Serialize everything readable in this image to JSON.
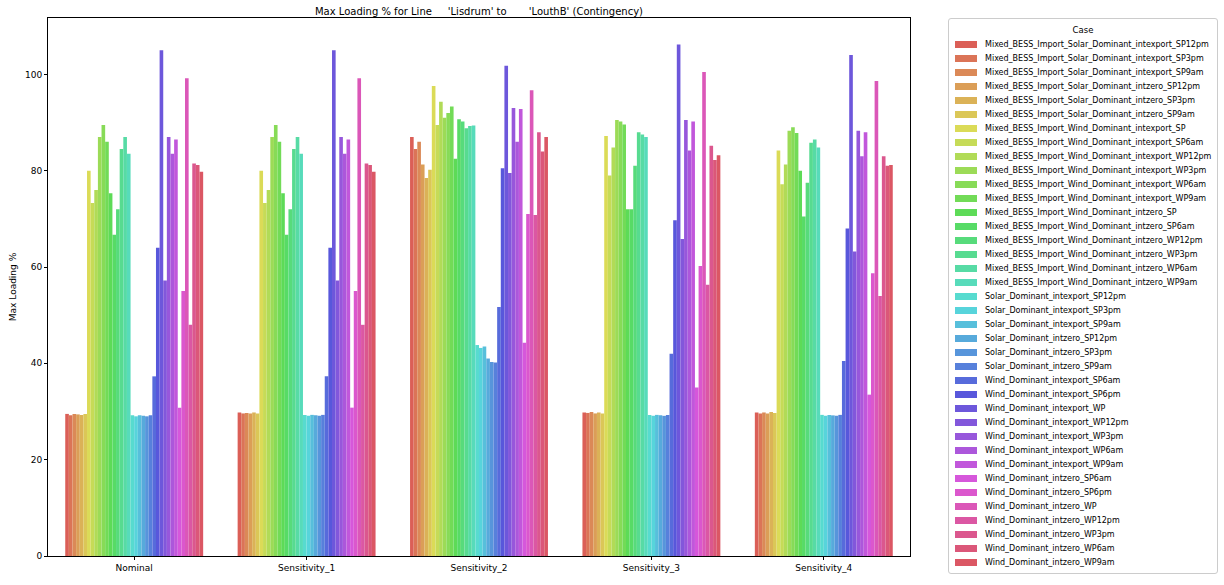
{
  "chart_data": {
    "type": "bar",
    "title": "Max Loading % for Line     'Lisdrum' to       'LouthB' (Contingency)",
    "y_label": "Max Loading %",
    "categories": [
      "Nominal",
      "Sensitivity_1",
      "Sensitivity_2",
      "Sensitivity_3",
      "Sensitivity_4"
    ],
    "ylim": [
      0,
      111.7
    ],
    "yticks": [
      0,
      20,
      40,
      60,
      80,
      100
    ],
    "grid": false,
    "legend": "upper right",
    "legend_title": "Case",
    "series": [
      {
        "name": "Mixed_BESS_Import_Solar_Dominant_intexport_SP12pm",
        "color": "#db5f57",
        "values": [
          29.5,
          29.8,
          87,
          29.8,
          29.8
        ]
      },
      {
        "name": "Mixed_BESS_Import_Solar_Dominant_intexport_SP3pm",
        "color": "#db7457",
        "values": [
          29.2,
          29.6,
          84.5,
          29.7,
          29.6
        ]
      },
      {
        "name": "Mixed_BESS_Import_Solar_Dominant_intexport_SP9am",
        "color": "#db8957",
        "values": [
          29.5,
          29.7,
          86,
          29.9,
          29.8
        ]
      },
      {
        "name": "Mixed_BESS_Import_Solar_Dominant_intzero_SP12pm",
        "color": "#db9e57",
        "values": [
          29.4,
          29.6,
          81.3,
          29.6,
          29.6
        ]
      },
      {
        "name": "Mixed_BESS_Import_Solar_Dominant_intzero_SP3pm",
        "color": "#dbb257",
        "values": [
          29.3,
          29.8,
          78.5,
          29.8,
          29.9
        ]
      },
      {
        "name": "Mixed_BESS_Import_Solar_Dominant_intzero_SP9am",
        "color": "#dbc757",
        "values": [
          29.5,
          29.6,
          80.2,
          29.6,
          29.7
        ]
      },
      {
        "name": "Mixed_BESS_Import_Wind_Dominant_intexport_SP",
        "color": "#dbdb57",
        "values": [
          80,
          80,
          97.6,
          87.2,
          84.2
        ]
      },
      {
        "name": "Mixed_BESS_Import_Wind_Dominant_intexport_SP6am",
        "color": "#c6db57",
        "values": [
          73.3,
          73.3,
          89.5,
          79,
          77.2
        ]
      },
      {
        "name": "Mixed_BESS_Import_Wind_Dominant_intexport_WP12pm",
        "color": "#b1db57",
        "values": [
          76,
          76,
          94.3,
          84.8,
          81.3
        ]
      },
      {
        "name": "Mixed_BESS_Import_Wind_Dominant_intexport_WP3pm",
        "color": "#9cdb57",
        "values": [
          87,
          87,
          91,
          90.5,
          88.3
        ]
      },
      {
        "name": "Mixed_BESS_Import_Wind_Dominant_intexport_WP6am",
        "color": "#87db57",
        "values": [
          89.5,
          89.5,
          92,
          90.2,
          89
        ]
      },
      {
        "name": "Mixed_BESS_Import_Wind_Dominant_intexport_WP9am",
        "color": "#72db57",
        "values": [
          86,
          86,
          93.3,
          89.6,
          87.8
        ]
      },
      {
        "name": "Mixed_BESS_Import_Wind_Dominant_intzero_SP",
        "color": "#5ddb57",
        "values": [
          75.3,
          75.3,
          82.5,
          72,
          80
        ]
      },
      {
        "name": "Mixed_BESS_Import_Wind_Dominant_intzero_SP6am",
        "color": "#57db66",
        "values": [
          66.7,
          66.7,
          90.7,
          72,
          70.5
        ]
      },
      {
        "name": "Mixed_BESS_Import_Wind_Dominant_intzero_WP12pm",
        "color": "#57db7b",
        "values": [
          72,
          72,
          90.2,
          81,
          77.5
        ]
      },
      {
        "name": "Mixed_BESS_Import_Wind_Dominant_intzero_WP3pm",
        "color": "#57db90",
        "values": [
          84.5,
          84.5,
          88.8,
          88,
          85.8
        ]
      },
      {
        "name": "Mixed_BESS_Import_Wind_Dominant_intzero_WP6am",
        "color": "#57dba5",
        "values": [
          87,
          87,
          89.3,
          87.5,
          86.5
        ]
      },
      {
        "name": "Mixed_BESS_Import_Wind_Dominant_intzero_WP9am",
        "color": "#57dbba",
        "values": [
          83.5,
          83.5,
          89.4,
          87,
          84.8
        ]
      },
      {
        "name": "Solar_Dominant_intexport_SP12pm",
        "color": "#57dbcf",
        "values": [
          29.2,
          29.3,
          43.8,
          29.3,
          29.3
        ]
      },
      {
        "name": "Solar_Dominant_intexport_SP3pm",
        "color": "#57d4db",
        "values": [
          29,
          29.1,
          43.2,
          29.1,
          29.1
        ]
      },
      {
        "name": "Solar_Dominant_intexport_SP9am",
        "color": "#57bfdb",
        "values": [
          29.2,
          29.3,
          43.5,
          29.3,
          29.3
        ]
      },
      {
        "name": "Solar_Dominant_intzero_SP12pm",
        "color": "#57aadb",
        "values": [
          29.1,
          29.2,
          41,
          29.2,
          29.2
        ]
      },
      {
        "name": "Solar_Dominant_intzero_SP3pm",
        "color": "#5795db",
        "values": [
          29,
          29.1,
          40.3,
          29.1,
          29.1
        ]
      },
      {
        "name": "Solar_Dominant_intzero_SP9am",
        "color": "#5780db",
        "values": [
          29.2,
          29.3,
          40.2,
          29.3,
          29.3
        ]
      },
      {
        "name": "Wind_Dominant_intexport_SP6am",
        "color": "#576bdb",
        "values": [
          37.3,
          37.3,
          51.7,
          42,
          40.5
        ]
      },
      {
        "name": "Wind_Dominant_intexport_SP6pm",
        "color": "#5857db",
        "values": [
          64,
          64,
          80.5,
          69.7,
          68
        ]
      },
      {
        "name": "Wind_Dominant_intexport_WP",
        "color": "#6d57db",
        "values": [
          105,
          105,
          101.8,
          106.2,
          104
        ]
      },
      {
        "name": "Wind_Dominant_intexport_WP12pm",
        "color": "#8257db",
        "values": [
          57.2,
          57.2,
          79.5,
          65.8,
          63.2
        ]
      },
      {
        "name": "Wind_Dominant_intexport_WP3pm",
        "color": "#9757db",
        "values": [
          87,
          87,
          93,
          90.5,
          88.3
        ]
      },
      {
        "name": "Wind_Dominant_intexport_WP6am",
        "color": "#ac57db",
        "values": [
          83.5,
          83.5,
          86,
          84.2,
          83
        ]
      },
      {
        "name": "Wind_Dominant_intexport_WP9am",
        "color": "#c157db",
        "values": [
          86.5,
          86.5,
          92.8,
          90.2,
          88
        ]
      },
      {
        "name": "Wind_Dominant_intzero_SP6am",
        "color": "#d657db",
        "values": [
          30.8,
          30.8,
          44.3,
          35,
          33.5
        ]
      },
      {
        "name": "Wind_Dominant_intzero_SP6pm",
        "color": "#db57cd",
        "values": [
          55,
          55,
          71,
          60.2,
          58.7
        ]
      },
      {
        "name": "Wind_Dominant_intzero_WP",
        "color": "#db57b8",
        "values": [
          99.2,
          99.2,
          96.7,
          100.5,
          98.6
        ]
      },
      {
        "name": "Wind_Dominant_intzero_WP12pm",
        "color": "#db57a3",
        "values": [
          48,
          48,
          70.8,
          56.3,
          54
        ]
      },
      {
        "name": "Wind_Dominant_intzero_WP3pm",
        "color": "#db578e",
        "values": [
          81.5,
          81.5,
          88,
          85.2,
          83
        ]
      },
      {
        "name": "Wind_Dominant_intzero_WP6am",
        "color": "#db5779",
        "values": [
          81.2,
          81.2,
          84,
          82.2,
          81
        ]
      },
      {
        "name": "Wind_Dominant_intzero_WP9am",
        "color": "#db5764",
        "values": [
          79.8,
          79.8,
          87,
          83.2,
          81.2
        ]
      }
    ]
  }
}
